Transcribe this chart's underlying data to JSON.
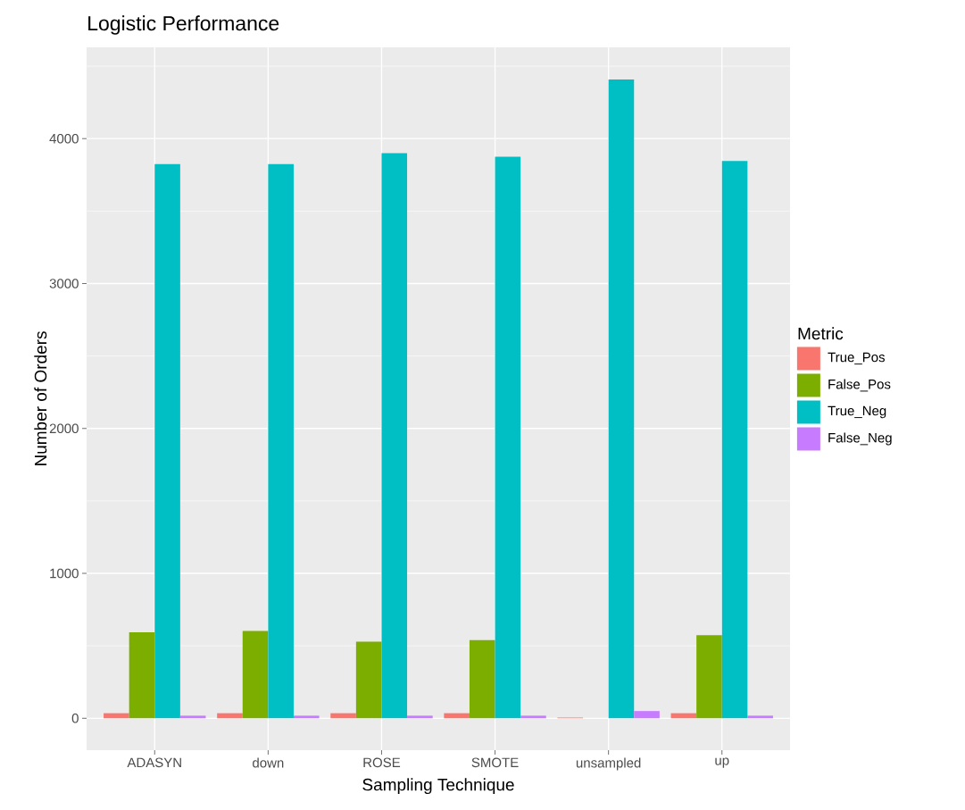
{
  "chart_data": {
    "type": "bar",
    "title": "Logistic Performance",
    "xlabel": "Sampling Technique",
    "ylabel": "Number of Orders",
    "legend_title": "Metric",
    "categories": [
      "ADASYN",
      "down",
      "ROSE",
      "SMOTE",
      "unsampled",
      "up"
    ],
    "series": [
      {
        "name": "True_Pos",
        "color": "#f8766d",
        "values": [
          35,
          35,
          35,
          35,
          5,
          35
        ]
      },
      {
        "name": "False_Pos",
        "color": "#7cae00",
        "values": [
          594,
          603,
          529,
          539,
          0,
          573
        ]
      },
      {
        "name": "True_Neg",
        "color": "#00bfc4",
        "values": [
          3824,
          3824,
          3899,
          3875,
          4408,
          3846
        ]
      },
      {
        "name": "False_Neg",
        "color": "#c77cff",
        "values": [
          18,
          18,
          18,
          18,
          50,
          18
        ]
      }
    ],
    "ylim": [
      -220,
      4630
    ],
    "yticks": [
      0,
      1000,
      2000,
      3000,
      4000
    ],
    "grid": true,
    "legend": "right"
  }
}
